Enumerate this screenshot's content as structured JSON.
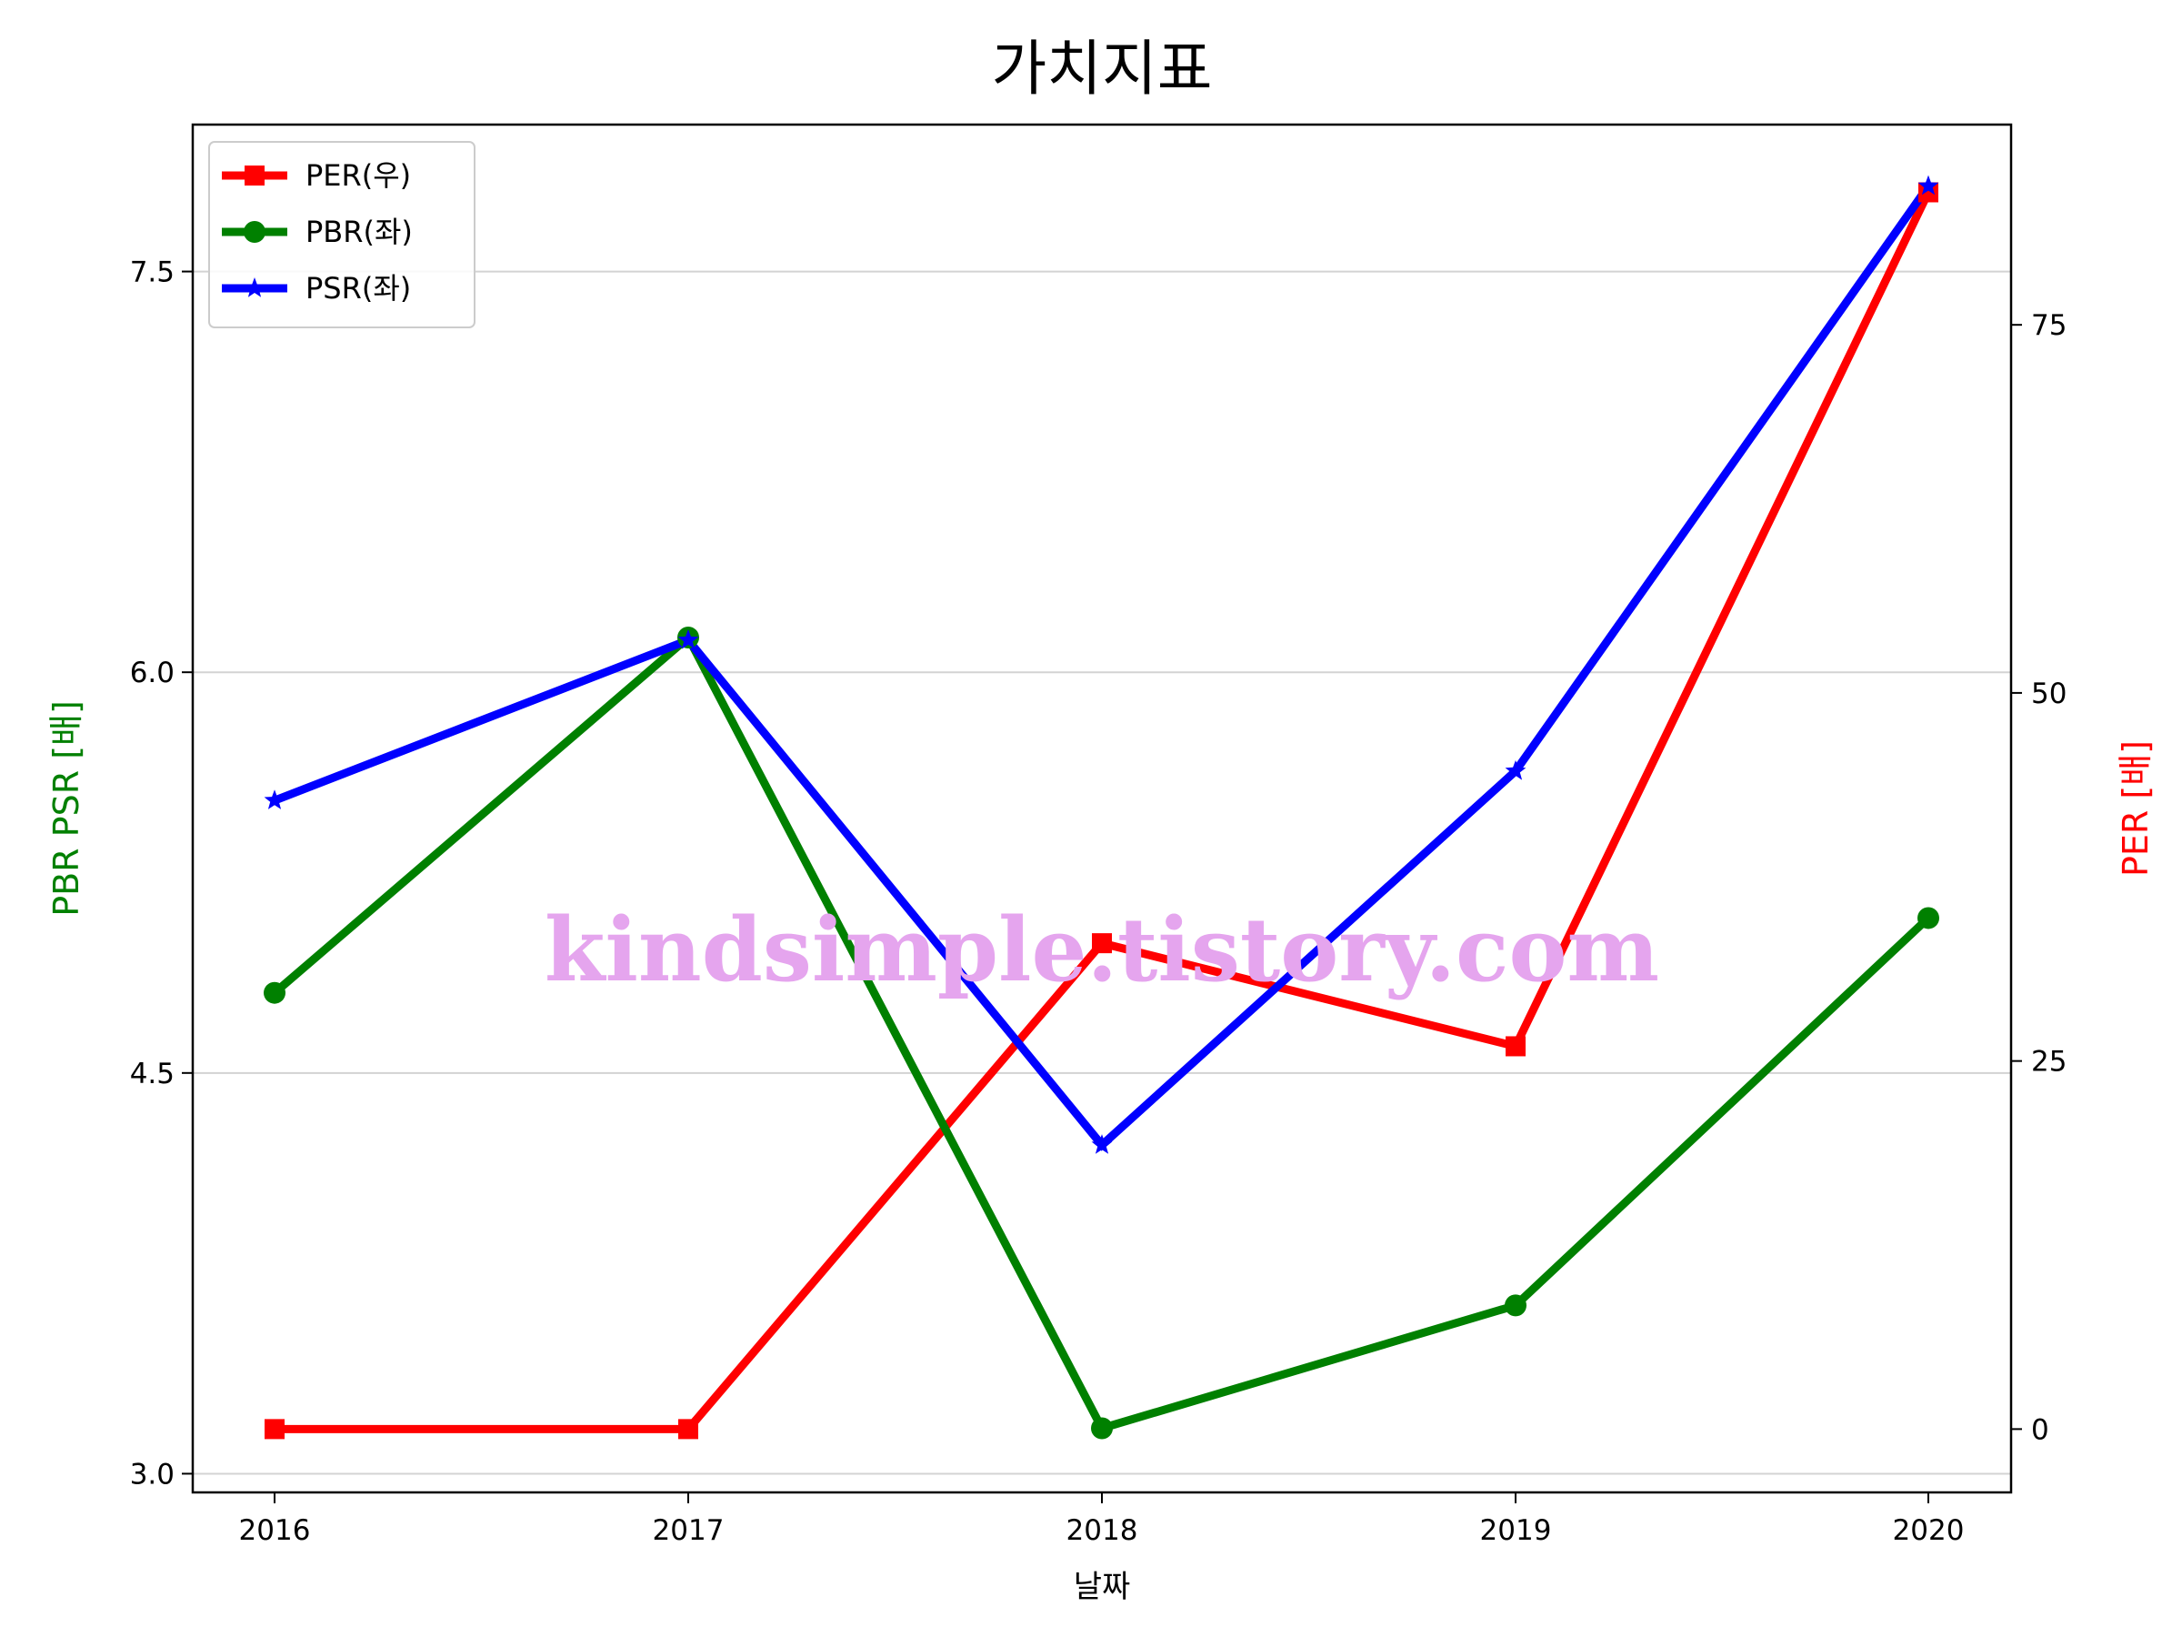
{
  "chart_data": {
    "type": "line",
    "title": "가치지표",
    "xlabel": "날짜",
    "ylabel_left": "PBR PSR [배]",
    "ylabel_right": "PER [배]",
    "categories": [
      "2016",
      "2017",
      "2018",
      "2019",
      "2020"
    ],
    "left_axis": {
      "ylim": [
        2.93,
        8.05
      ],
      "ticks": [
        3.0,
        4.5,
        6.0,
        7.5
      ],
      "tick_labels": [
        "3.0",
        "4.5",
        "6.0",
        "7.5"
      ],
      "label_color": "#008000"
    },
    "right_axis": {
      "ylim": [
        -4.3,
        88.6
      ],
      "ticks": [
        0,
        25,
        50,
        75
      ],
      "tick_labels": [
        "0",
        "25",
        "50",
        "75"
      ],
      "label_color": "#ff0000"
    },
    "grid": "horizontal (left axis)",
    "legend_position": "top-left",
    "series": [
      {
        "name": "PER(우)",
        "axis": "right",
        "color": "#ff0000",
        "marker": "square",
        "values": [
          0,
          0,
          33,
          26,
          84
        ]
      },
      {
        "name": "PBR(좌)",
        "axis": "left",
        "color": "#008000",
        "marker": "circle",
        "values": [
          4.8,
          6.13,
          3.17,
          3.63,
          5.08
        ]
      },
      {
        "name": "PSR(좌)",
        "axis": "left",
        "color": "#0000ff",
        "marker": "star",
        "values": [
          5.52,
          6.12,
          4.23,
          5.63,
          7.82
        ]
      }
    ],
    "watermark": "kindsimple.tistory.com"
  }
}
